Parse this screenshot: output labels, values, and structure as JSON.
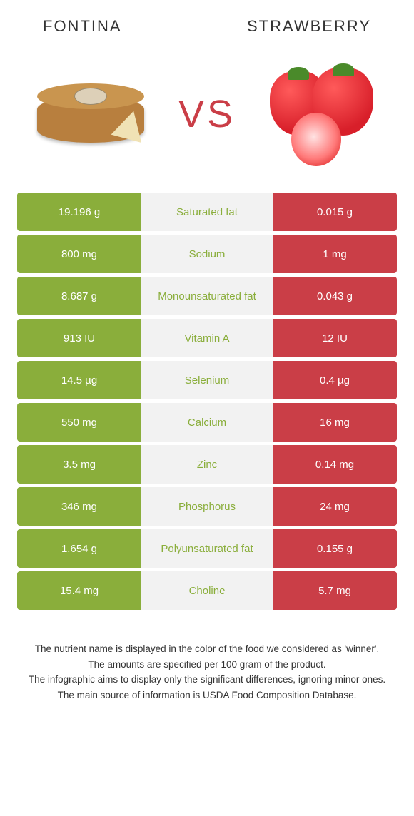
{
  "header": {
    "left_title": "FONTINA",
    "right_title": "STRAWBERRY",
    "vs": "VS"
  },
  "colors": {
    "left_bar": "#8aae3b",
    "right_bar": "#ca3e47",
    "mid_bg": "#f2f2f2",
    "left_text": "#8aae3b",
    "right_text": "#ca3e47"
  },
  "rows": [
    {
      "left": "19.196 g",
      "label": "Saturated fat",
      "right": "0.015 g",
      "winner": "left"
    },
    {
      "left": "800 mg",
      "label": "Sodium",
      "right": "1 mg",
      "winner": "left"
    },
    {
      "left": "8.687 g",
      "label": "Monounsaturated fat",
      "right": "0.043 g",
      "winner": "left"
    },
    {
      "left": "913 IU",
      "label": "Vitamin A",
      "right": "12 IU",
      "winner": "left"
    },
    {
      "left": "14.5 µg",
      "label": "Selenium",
      "right": "0.4 µg",
      "winner": "left"
    },
    {
      "left": "550 mg",
      "label": "Calcium",
      "right": "16 mg",
      "winner": "left"
    },
    {
      "left": "3.5 mg",
      "label": "Zinc",
      "right": "0.14 mg",
      "winner": "left"
    },
    {
      "left": "346 mg",
      "label": "Phosphorus",
      "right": "24 mg",
      "winner": "left"
    },
    {
      "left": "1.654 g",
      "label": "Polyunsaturated fat",
      "right": "0.155 g",
      "winner": "left"
    },
    {
      "left": "15.4 mg",
      "label": "Choline",
      "right": "5.7 mg",
      "winner": "left"
    }
  ],
  "footer": {
    "line1": "The nutrient name is displayed in the color of the food we considered as 'winner'.",
    "line2": "The amounts are specified per 100 gram of the product.",
    "line3": "The infographic aims to display only the significant differences, ignoring minor ones.",
    "line4": "The main source of information is USDA Food Composition Database."
  }
}
